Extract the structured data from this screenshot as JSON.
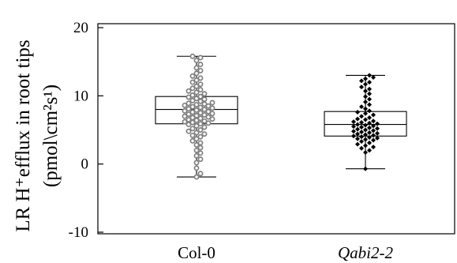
{
  "chart_data": {
    "type": "box",
    "ylabel_line1": "LR H⁺efflux in root tips",
    "ylabel_line2": "(pmol\\cm²s¹)",
    "ylim": [
      -10,
      20
    ],
    "yticks": [
      20,
      10,
      0,
      -10
    ],
    "ytick_labels": [
      "20",
      "10",
      "0",
      "-10"
    ],
    "categories": [
      "Col-0",
      "Qabi2-2"
    ],
    "series": [
      {
        "category": "Col-0",
        "whisker_low": -1.9,
        "q1": 5.9,
        "median": 8.0,
        "q3": 9.9,
        "whisker_high": 15.8,
        "marker_color": "#808080",
        "points": [
          15.8,
          15.6,
          15.2,
          14.6,
          14.1,
          13.7,
          13.3,
          12.9,
          12.6,
          12.3,
          12.0,
          11.7,
          11.4,
          11.1,
          10.9,
          10.7,
          10.5,
          10.3,
          10.1,
          9.9,
          9.8,
          9.6,
          9.5,
          9.3,
          9.2,
          9.0,
          8.9,
          8.8,
          8.7,
          8.6,
          8.5,
          8.4,
          8.3,
          8.2,
          8.1,
          8.0,
          7.9,
          7.8,
          7.7,
          7.6,
          7.5,
          7.4,
          7.3,
          7.2,
          7.1,
          7.0,
          6.9,
          6.8,
          6.7,
          6.6,
          6.5,
          6.4,
          6.3,
          6.2,
          6.1,
          6.0,
          5.9,
          5.8,
          5.6,
          5.4,
          5.2,
          5.0,
          4.8,
          4.6,
          4.4,
          4.2,
          4.0,
          3.7,
          3.4,
          3.1,
          2.8,
          2.4,
          2.0,
          1.6,
          1.2,
          0.7,
          0.2,
          -0.6,
          -1.4,
          -1.9
        ]
      },
      {
        "category": "Qabi2-2",
        "whisker_low": -0.7,
        "q1": 4.1,
        "median": 5.8,
        "q3": 7.7,
        "whisker_high": 13.0,
        "marker_color": "#000000",
        "points": [
          13.0,
          12.7,
          12.5,
          12.2,
          12.0,
          11.7,
          11.3,
          11.0,
          10.7,
          10.3,
          9.9,
          9.5,
          9.1,
          8.7,
          8.4,
          8.1,
          7.8,
          7.6,
          7.4,
          7.2,
          7.0,
          6.8,
          6.6,
          6.5,
          6.3,
          6.2,
          6.1,
          6.0,
          5.9,
          5.8,
          5.7,
          5.6,
          5.5,
          5.4,
          5.3,
          5.2,
          5.1,
          5.0,
          4.9,
          4.8,
          4.7,
          4.6,
          4.5,
          4.4,
          4.3,
          4.2,
          4.1,
          4.0,
          3.9,
          3.8,
          3.7,
          3.6,
          3.5,
          3.3,
          3.1,
          2.9,
          2.7,
          2.5,
          2.3,
          2.0,
          1.7,
          -0.7
        ]
      }
    ]
  }
}
